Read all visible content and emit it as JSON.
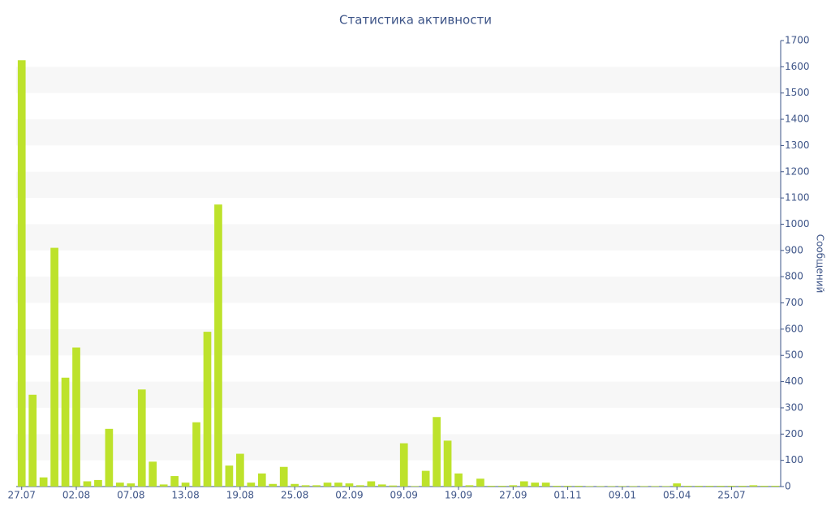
{
  "chart_data": {
    "type": "bar",
    "title": "Статистика активности",
    "y_label": "Сообщений",
    "categories": [
      "27.07",
      null,
      null,
      null,
      null,
      "02.08",
      null,
      null,
      null,
      null,
      "07.08",
      null,
      null,
      null,
      null,
      "13.08",
      null,
      null,
      null,
      null,
      "19.08",
      null,
      null,
      null,
      null,
      "25.08",
      null,
      null,
      null,
      null,
      "02.09",
      null,
      null,
      null,
      null,
      "09.09",
      null,
      null,
      null,
      null,
      "19.09",
      null,
      null,
      null,
      null,
      "27.09",
      null,
      null,
      null,
      null,
      "01.11",
      null,
      null,
      null,
      null,
      "09.01",
      null,
      null,
      null,
      null,
      "05.04",
      null,
      null,
      null,
      null,
      "25.07",
      null,
      null,
      null,
      null
    ],
    "values": [
      1625,
      350,
      35,
      910,
      415,
      530,
      20,
      25,
      220,
      15,
      12,
      370,
      95,
      8,
      40,
      15,
      245,
      590,
      1075,
      80,
      125,
      15,
      50,
      10,
      75,
      10,
      5,
      5,
      15,
      15,
      12,
      5,
      20,
      8,
      4,
      165,
      2,
      60,
      265,
      175,
      50,
      5,
      30,
      3,
      3,
      5,
      20,
      15,
      15,
      3,
      3,
      3,
      2,
      2,
      2,
      2,
      2,
      2,
      2,
      2,
      12,
      3,
      3,
      3,
      3,
      3,
      3,
      5,
      3,
      3
    ],
    "color": "#bde22b",
    "ylim": [
      0,
      1700
    ],
    "yticks": [
      0,
      100,
      200,
      300,
      400,
      500,
      600,
      700,
      800,
      900,
      1000,
      1100,
      1200,
      1300,
      1400,
      1500,
      1600,
      1700
    ],
    "grid": true,
    "y_axis_side": "right"
  }
}
